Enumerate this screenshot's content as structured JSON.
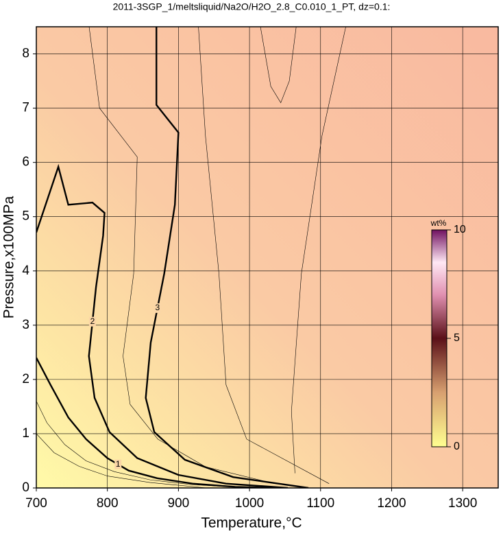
{
  "chart_data": {
    "type": "contour",
    "title": "2011-3SGP_1/meltsliquid/Na2O/H2O_2.8_C0.010_1_PT, dz=0.1:",
    "x_label": "Temperature,°C",
    "y_label": "Pressure,x100MPa",
    "xlim": [
      700,
      1350
    ],
    "ylim": [
      0,
      8.5
    ],
    "xticks": [
      700,
      800,
      900,
      1000,
      1100,
      1200,
      1300
    ],
    "yticks": [
      0,
      1,
      2,
      3,
      4,
      5,
      6,
      7,
      8
    ],
    "grid": true,
    "contours": [
      {
        "level": 1,
        "x": [
          700,
          720,
          745,
          770,
          800,
          830,
          870,
          920,
          980,
          1040
        ],
        "y": [
          2.4,
          1.9,
          1.3,
          0.9,
          0.55,
          0.32,
          0.18,
          0.08,
          0.02,
          0
        ]
      },
      {
        "level": 2,
        "x": [
          700,
          731,
          745,
          779,
          796,
          794,
          784,
          774,
          782,
          803,
          842,
          900,
          967,
          1054
        ],
        "y": [
          4.71,
          5.92,
          5.22,
          5.26,
          5.07,
          4.65,
          3.7,
          2.43,
          1.66,
          1.03,
          0.55,
          0.24,
          0.08,
          0
        ]
      },
      {
        "level": 3,
        "x": [
          869,
          869,
          900,
          895,
          880,
          861,
          854,
          866,
          909,
          977,
          1083
        ],
        "y": [
          8.53,
          7.06,
          6.55,
          5.22,
          3.95,
          2.68,
          1.66,
          1.03,
          0.52,
          0.2,
          0
        ]
      }
    ],
    "thin_contours": [
      {
        "x": [
          774,
          789,
          842,
          837,
          822,
          832,
          871,
          938,
          1035
        ],
        "y": [
          8.53,
          7.0,
          6.1,
          3.95,
          2.43,
          1.54,
          0.9,
          0.39,
          0.08
        ]
      },
      {
        "x": [
          928,
          938,
          957,
          967,
          996,
          1112
        ],
        "y": [
          8.53,
          6.49,
          3.95,
          1.9,
          0.9,
          0.08
        ]
      },
      {
        "x": [
          1015,
          1030,
          1044,
          1056,
          1066
        ],
        "y": [
          8.53,
          7.4,
          7.1,
          7.5,
          8.53
        ]
      },
      {
        "x": [
          1136,
          1102,
          1073,
          1059,
          1064
        ],
        "y": [
          8.53,
          6.49,
          3.95,
          1.41,
          0.27
        ]
      },
      {
        "x": [
          700,
          715,
          740,
          770,
          810,
          860,
          920,
          1000
        ],
        "y": [
          1.6,
          1.2,
          0.8,
          0.5,
          0.3,
          0.15,
          0.06,
          0
        ]
      },
      {
        "x": [
          700,
          725,
          760,
          800,
          860,
          940
        ],
        "y": [
          1.0,
          0.65,
          0.4,
          0.22,
          0.1,
          0
        ]
      }
    ],
    "colorbar": {
      "label": "wt%",
      "ticks": [
        0,
        5,
        10
      ],
      "lim": [
        0,
        10
      ]
    }
  }
}
